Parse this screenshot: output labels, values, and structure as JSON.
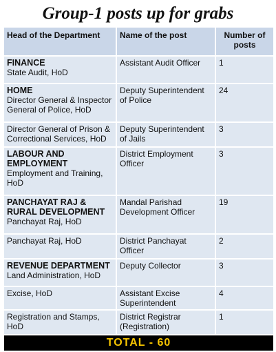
{
  "title": "Group-1 posts up for grabs",
  "table": {
    "header": [
      "Head of the Department",
      "Name of the post",
      "Number of posts"
    ],
    "rows": [
      {
        "heading": "FINANCE",
        "department": "State Audit, HoD",
        "post": "Assistant Audit Officer",
        "number": "1"
      },
      {
        "heading": "HOME",
        "department": "Director General & Inspector General of Police, HoD",
        "post": "Deputy Superintendent of Police",
        "number": "24"
      },
      {
        "department": "Director General of Prison & Correctional Services, HoD",
        "post": "Deputy Superintendent of Jails",
        "number": "3"
      },
      {
        "heading": "LABOUR AND EMPLOYMENT",
        "department": "Employment and Training, HoD",
        "post": "District Employment Officer",
        "number": "3"
      },
      {
        "heading": "PANCHAYAT RAJ & RURAL DEVELOPMENT",
        "department": "Panchayat Raj, HoD",
        "post": "Mandal Parishad Development Officer",
        "number": "19"
      },
      {
        "department": "Panchayat Raj, HoD",
        "post": "District Panchayat Officer",
        "number": "2"
      },
      {
        "heading": "REVENUE DEPARTMENT",
        "department": "Land Administration, HoD",
        "post": "Deputy Collector",
        "number": "3"
      },
      {
        "department": "Excise, HoD",
        "post": "Assistant Excise Superintendent",
        "number": "4"
      },
      {
        "department": "Registration and Stamps, HoD",
        "post": "District Registrar (Registration)",
        "number": "1"
      }
    ],
    "total": "TOTAL - 60"
  }
}
